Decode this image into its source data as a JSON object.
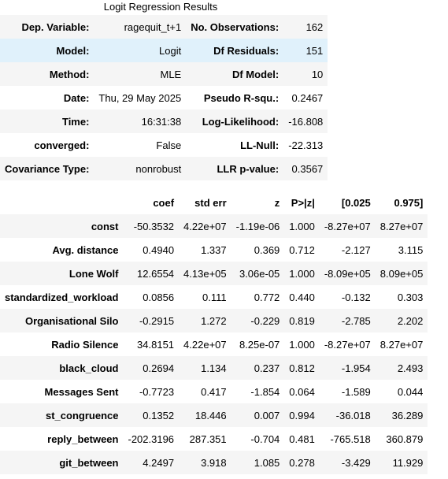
{
  "caption": "Logit Regression Results",
  "summary": [
    {
      "l1": "Dep. Variable:",
      "v1": "ragequit_t+1",
      "l2": "No. Observations:",
      "v2": "162"
    },
    {
      "l1": "Model:",
      "v1": "Logit",
      "l2": "Df Residuals:",
      "v2": "151"
    },
    {
      "l1": "Method:",
      "v1": "MLE",
      "l2": "Df Model:",
      "v2": "10"
    },
    {
      "l1": "Date:",
      "v1": "Thu, 29 May 2025",
      "l2": "Pseudo R-squ.:",
      "v2": "0.2467"
    },
    {
      "l1": "Time:",
      "v1": "16:31:38",
      "l2": "Log-Likelihood:",
      "v2": "-16.808"
    },
    {
      "l1": "converged:",
      "v1": "False",
      "l2": "LL-Null:",
      "v2": "-22.313"
    },
    {
      "l1": "Covariance Type:",
      "v1": "nonrobust",
      "l2": "LLR p-value:",
      "v2": "0.3567"
    }
  ],
  "coef": {
    "headers": [
      "",
      "coef",
      "std err",
      "z",
      "P>|z|",
      "[0.025",
      "0.975]"
    ],
    "rows": [
      [
        "const",
        "-50.3532",
        "4.22e+07",
        "-1.19e-06",
        "1.000",
        "-8.27e+07",
        "8.27e+07"
      ],
      [
        "Avg. distance",
        "0.4940",
        "1.337",
        "0.369",
        "0.712",
        "-2.127",
        "3.115"
      ],
      [
        "Lone Wolf",
        "12.6554",
        "4.13e+05",
        "3.06e-05",
        "1.000",
        "-8.09e+05",
        "8.09e+05"
      ],
      [
        "standardized_workload",
        "0.0856",
        "0.111",
        "0.772",
        "0.440",
        "-0.132",
        "0.303"
      ],
      [
        "Organisational Silo",
        "-0.2915",
        "1.272",
        "-0.229",
        "0.819",
        "-2.785",
        "2.202"
      ],
      [
        "Radio Silence",
        "34.8151",
        "4.22e+07",
        "8.25e-07",
        "1.000",
        "-8.27e+07",
        "8.27e+07"
      ],
      [
        "black_cloud",
        "0.2694",
        "1.134",
        "0.237",
        "0.812",
        "-1.954",
        "2.493"
      ],
      [
        "Messages Sent",
        "-0.7723",
        "0.417",
        "-1.854",
        "0.064",
        "-1.589",
        "0.044"
      ],
      [
        "st_congruence",
        "0.1352",
        "18.446",
        "0.007",
        "0.994",
        "-36.018",
        "36.289"
      ],
      [
        "reply_between",
        "-202.3196",
        "287.351",
        "-0.704",
        "0.481",
        "-765.518",
        "360.879"
      ],
      [
        "git_between",
        "4.2497",
        "3.918",
        "1.085",
        "0.278",
        "-3.429",
        "11.929"
      ]
    ]
  }
}
